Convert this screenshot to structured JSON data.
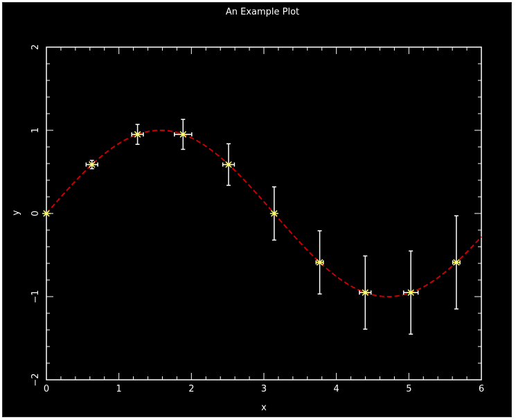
{
  "chart_data": {
    "type": "scatter",
    "title": "An Example Plot",
    "xlabel": "x",
    "ylabel": "y",
    "xlim": [
      0,
      6
    ],
    "ylim": [
      -2,
      2
    ],
    "x_ticks": [
      "0",
      "1",
      "2",
      "3",
      "4",
      "5",
      "6"
    ],
    "y_ticks": [
      "−2",
      "−1",
      "0",
      "1",
      "2"
    ],
    "grid": false,
    "legend": "none",
    "series": [
      {
        "kind": "points_with_errorbars",
        "marker": "asterisk",
        "x": [
          0,
          0.628,
          1.257,
          1.885,
          2.513,
          3.142,
          3.77,
          4.398,
          5.027,
          5.655
        ],
        "y": [
          0,
          0.588,
          0.951,
          0.951,
          0.588,
          0.0,
          -0.588,
          -0.951,
          -0.951,
          -0.588
        ],
        "x_err": [
          0,
          0.08,
          0.08,
          0.12,
          0.08,
          0.0,
          0.05,
          0.08,
          0.1,
          0.05
        ],
        "y_err": [
          0,
          0.05,
          0.12,
          0.18,
          0.25,
          0.32,
          0.38,
          0.44,
          0.5,
          0.56
        ]
      },
      {
        "kind": "curve",
        "function": "sin(x)",
        "x_range": [
          0,
          6
        ],
        "style": "dashed"
      }
    ]
  },
  "colors": {
    "background": "#000000",
    "axes": "#ffffff",
    "errorbars": "#ffffff",
    "markers": "#ffff66",
    "curve": "#cc0000"
  }
}
